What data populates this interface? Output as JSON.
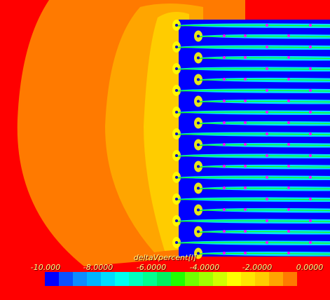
{
  "legend": {
    "title": "deltaVpercent[I]",
    "ticks": [
      "-10.000",
      "-8.0000",
      "-6.0000",
      "-4.0000",
      "-2.0000",
      "0.0000"
    ],
    "colors": [
      "#0000ff",
      "#0a50ff",
      "#0c8cff",
      "#00b4ff",
      "#00dcff",
      "#00fff0",
      "#00ffc0",
      "#00ff90",
      "#00f060",
      "#20ff00",
      "#70ff00",
      "#a0ff00",
      "#d0ff00",
      "#ffff00",
      "#ffe600",
      "#ffcc00",
      "#ffa500",
      "#ff7a00"
    ]
  },
  "field": {
    "background_color": "#ff0000",
    "outer_color": "#ff7a00",
    "inner_color": "#ffa500",
    "wake_color": "#0000ff",
    "marker_color": "#ff00ff"
  }
}
